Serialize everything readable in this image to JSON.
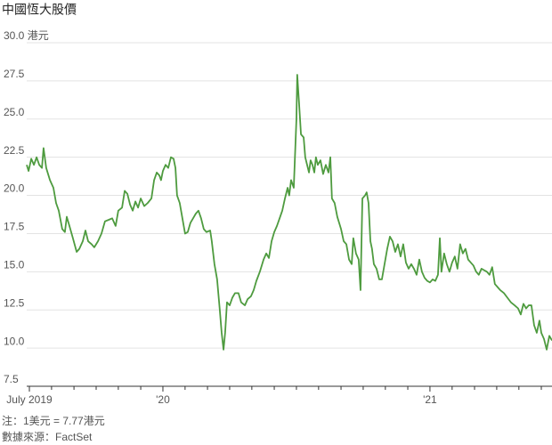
{
  "chart_data": {
    "type": "line",
    "title": "中國恆大股價",
    "notes": [
      "注：1美元 = 7.77港元",
      "數據來源：FactSet"
    ],
    "color": "#4e9b3f",
    "grid": true,
    "ylim": [
      7.5,
      30
    ],
    "yticks": [
      7.5,
      {
        "value": 10,
        "label": "10.0"
      },
      12.5,
      {
        "value": 15,
        "label": "15.0"
      },
      17.5,
      {
        "value": 20,
        "label": "20.0"
      },
      22.5,
      {
        "value": 25,
        "label": "25.0"
      },
      27.5,
      {
        "value": 30,
        "label": "30.0 港元"
      }
    ],
    "xlim": [
      2019.49,
      2021.457
    ],
    "xticks": [
      {
        "value": 2019.5,
        "label": "July 2019"
      },
      {
        "value": 2020,
        "label": "'20"
      },
      {
        "value": 2021,
        "label": "'21"
      }
    ],
    "xminor_ticks": [
      2019.583,
      2019.667,
      2019.75,
      2019.833,
      2019.917,
      2020.083,
      2020.167,
      2020.25,
      2020.333,
      2020.417,
      2020.5,
      2020.583,
      2020.667,
      2020.75,
      2020.833,
      2020.917,
      2021.083,
      2021.167,
      2021.25,
      2021.333,
      2021.417
    ],
    "x": [
      2019.49,
      2019.497,
      2019.507,
      2019.517,
      2019.527,
      2019.537,
      2019.547,
      2019.553,
      2019.563,
      2019.577,
      2019.59,
      2019.6,
      2019.61,
      2019.623,
      2019.633,
      2019.64,
      2019.65,
      2019.663,
      2019.677,
      2019.687,
      2019.7,
      2019.71,
      2019.72,
      2019.733,
      2019.743,
      2019.757,
      2019.77,
      2019.783,
      2019.797,
      2019.81,
      2019.823,
      2019.833,
      2019.847,
      2019.857,
      2019.867,
      2019.877,
      2019.887,
      2019.897,
      2019.907,
      2019.917,
      2019.93,
      2019.943,
      2019.957,
      2019.967,
      2019.977,
      2019.987,
      2019.993,
      2020.0,
      2020.01,
      2020.02,
      2020.03,
      2020.04,
      2020.047,
      2020.053,
      2020.063,
      2020.073,
      2020.083,
      2020.093,
      2020.103,
      2020.113,
      2020.123,
      2020.133,
      2020.143,
      2020.153,
      2020.163,
      2020.177,
      2020.183,
      2020.193,
      2020.203,
      2020.213,
      2020.22,
      2020.227,
      2020.233,
      2020.24,
      2020.25,
      2020.26,
      2020.27,
      2020.283,
      2020.293,
      2020.307,
      2020.317,
      2020.33,
      2020.34,
      2020.35,
      2020.363,
      2020.377,
      2020.387,
      2020.397,
      2020.407,
      2020.417,
      2020.427,
      2020.437,
      2020.447,
      2020.457,
      2020.467,
      2020.473,
      2020.48,
      2020.49,
      2020.5,
      2020.503,
      2020.51,
      2020.517,
      2020.527,
      2020.533,
      2020.54,
      2020.547,
      2020.553,
      2020.56,
      2020.567,
      2020.573,
      2020.58,
      2020.59,
      2020.6,
      2020.61,
      2020.62,
      2020.627,
      2020.633,
      2020.643,
      2020.653,
      2020.667,
      2020.677,
      2020.687,
      2020.697,
      2020.707,
      2020.713,
      2020.723,
      2020.733,
      2020.74,
      2020.747,
      2020.757,
      2020.763,
      2020.77,
      2020.777,
      2020.783,
      2020.79,
      2020.8,
      2020.81,
      2020.82,
      2020.83,
      2020.84,
      2020.85,
      2020.86,
      2020.87,
      2020.88,
      2020.89,
      2020.9,
      2020.91,
      2020.92,
      2020.93,
      2020.94,
      2020.95,
      2020.96,
      2020.97,
      2020.98,
      2020.99,
      2021.0,
      2021.01,
      2021.02,
      2021.03,
      2021.037,
      2021.043,
      2021.053,
      2021.063,
      2021.073,
      2021.083,
      2021.093,
      2021.103,
      2021.113,
      2021.123,
      2021.133,
      2021.143,
      2021.153,
      2021.163,
      2021.173,
      2021.183,
      2021.193,
      2021.203,
      2021.213,
      2021.223,
      2021.233,
      2021.243,
      2021.253,
      2021.263,
      2021.277,
      2021.29,
      2021.303,
      2021.317,
      2021.33,
      2021.34,
      2021.35,
      2021.36,
      2021.37,
      2021.38,
      2021.39,
      2021.4,
      2021.41,
      2021.417,
      2021.427,
      2021.437,
      2021.447,
      2021.457
    ],
    "values": [
      22.0,
      21.6,
      22.4,
      22.0,
      22.5,
      22.0,
      21.8,
      23.1,
      21.8,
      21.0,
      20.5,
      19.5,
      19.0,
      17.8,
      17.6,
      18.6,
      18.0,
      17.2,
      16.3,
      16.5,
      17.0,
      17.7,
      17.0,
      16.8,
      16.6,
      17.0,
      17.5,
      18.3,
      18.4,
      18.5,
      18.0,
      19.0,
      19.2,
      20.3,
      20.1,
      19.4,
      19.0,
      19.6,
      19.2,
      19.8,
      19.3,
      19.5,
      19.8,
      21.0,
      21.5,
      21.3,
      21.0,
      21.6,
      22.0,
      21.8,
      22.5,
      22.4,
      21.8,
      20.0,
      19.5,
      18.5,
      17.5,
      17.6,
      18.2,
      18.5,
      18.8,
      19.0,
      18.5,
      17.8,
      17.6,
      17.7,
      17.0,
      15.5,
      14.5,
      12.5,
      11.0,
      9.9,
      11.0,
      13.0,
      12.8,
      13.3,
      13.6,
      13.6,
      13.0,
      12.8,
      13.2,
      13.4,
      13.8,
      14.4,
      15.0,
      15.8,
      16.2,
      15.9,
      17.0,
      17.6,
      18.0,
      18.5,
      19.0,
      19.8,
      20.5,
      20.0,
      21.0,
      20.5,
      25.0,
      27.9,
      26.0,
      24.0,
      23.8,
      22.5,
      22.0,
      21.5,
      22.3,
      22.0,
      21.5,
      22.5,
      22.0,
      22.3,
      21.4,
      22.0,
      21.5,
      22.5,
      19.8,
      19.5,
      18.6,
      17.8,
      17.0,
      16.8,
      15.8,
      15.5,
      17.2,
      16.2,
      15.8,
      13.8,
      19.8,
      20.0,
      20.2,
      19.5,
      17.0,
      16.5,
      15.5,
      15.2,
      14.5,
      14.5,
      15.5,
      16.5,
      17.3,
      17.0,
      16.3,
      16.8,
      16.0,
      16.8,
      15.6,
      15.2,
      15.5,
      15.2,
      14.8,
      15.8,
      15.0,
      14.6,
      14.4,
      14.3,
      14.5,
      14.4,
      14.8,
      17.2,
      15.0,
      16.2,
      15.5,
      15.0,
      15.6,
      16.0,
      15.2,
      16.8,
      16.2,
      16.5,
      15.8,
      15.6,
      15.4,
      15.0,
      14.8,
      15.2,
      15.1,
      15.0,
      14.8,
      15.3,
      14.2,
      14.0,
      13.8,
      13.6,
      13.3,
      13.0,
      12.8,
      12.6,
      12.2,
      12.9,
      12.6,
      12.8,
      12.8,
      11.5,
      11.0,
      11.8,
      11.0,
      10.6,
      9.9,
      10.8,
      10.5
    ]
  }
}
